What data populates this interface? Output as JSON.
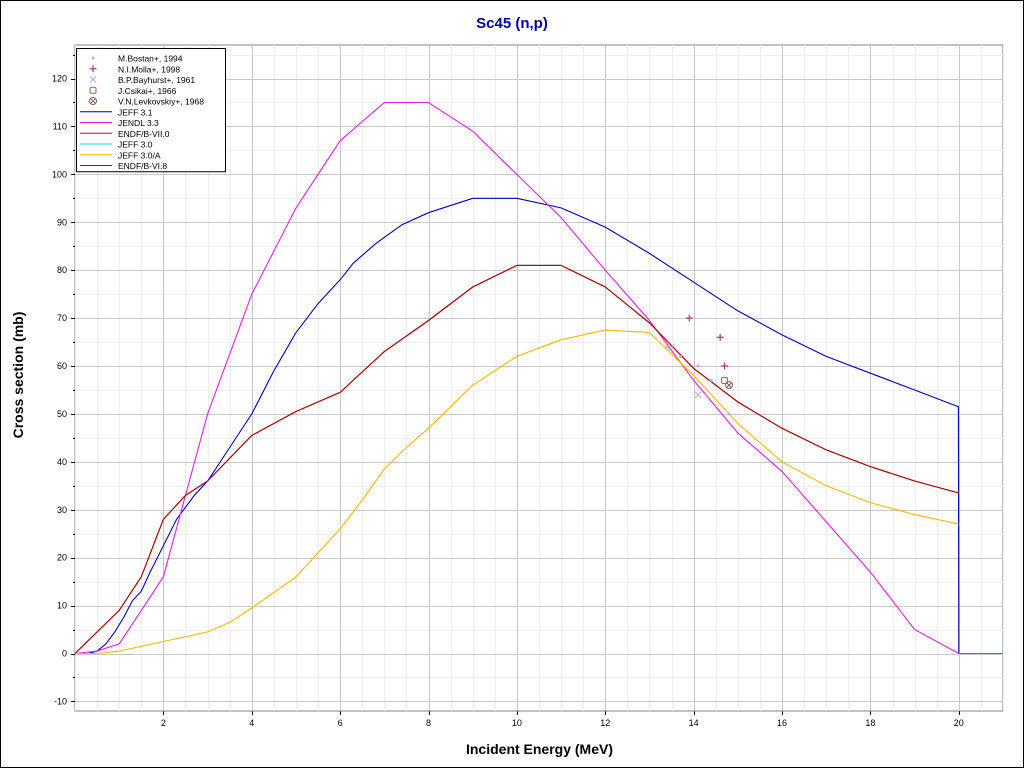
{
  "chart_data": {
    "type": "line",
    "title": "Sc45 (n,p)",
    "xlabel": "Incident Energy (MeV)",
    "ylabel": "Cross section (mb)",
    "xlim": [
      0,
      21
    ],
    "ylim": [
      -12,
      127
    ],
    "x_ticks": [
      2,
      4,
      6,
      8,
      10,
      12,
      14,
      16,
      18,
      20
    ],
    "y_ticks": [
      -10,
      0,
      10,
      20,
      30,
      40,
      50,
      60,
      70,
      80,
      90,
      100,
      110,
      120
    ],
    "grid": true,
    "legend_position": "top-left",
    "series": [
      {
        "name": "JEFF 3.1",
        "color": "#0000c0",
        "points": [
          [
            0,
            0
          ],
          [
            0.3,
            0
          ],
          [
            0.5,
            0.5
          ],
          [
            0.7,
            2
          ],
          [
            0.9,
            4.5
          ],
          [
            1.1,
            7.5
          ],
          [
            1.3,
            11
          ],
          [
            1.5,
            13
          ],
          [
            1.7,
            17
          ],
          [
            2,
            22.5
          ],
          [
            2.3,
            28
          ],
          [
            2.7,
            33
          ],
          [
            3,
            36
          ],
          [
            3.5,
            43
          ],
          [
            4,
            50
          ],
          [
            4.5,
            59
          ],
          [
            5,
            67
          ],
          [
            5.5,
            73
          ],
          [
            6,
            78
          ],
          [
            6.3,
            81.5
          ],
          [
            6.8,
            85.5
          ],
          [
            7.4,
            89.5
          ],
          [
            8,
            92
          ],
          [
            9,
            95
          ],
          [
            10,
            95
          ],
          [
            11,
            93
          ],
          [
            12,
            89
          ],
          [
            13,
            83.5
          ],
          [
            14,
            77.5
          ],
          [
            15,
            71.5
          ],
          [
            16,
            66.5
          ],
          [
            17,
            62
          ],
          [
            18,
            58.5
          ],
          [
            19,
            55
          ],
          [
            19.99,
            51.5
          ],
          [
            20,
            0
          ],
          [
            21,
            0
          ]
        ]
      },
      {
        "name": "JENDL 3.3",
        "color": "#e020e0",
        "points": [
          [
            0,
            0
          ],
          [
            0.5,
            0.5
          ],
          [
            1,
            2
          ],
          [
            1.5,
            9
          ],
          [
            2,
            16
          ],
          [
            3,
            50
          ],
          [
            4,
            75
          ],
          [
            5,
            93
          ],
          [
            6,
            107
          ],
          [
            7,
            115
          ],
          [
            8,
            115
          ],
          [
            9,
            109
          ],
          [
            10,
            100
          ],
          [
            11,
            91
          ],
          [
            12,
            80
          ],
          [
            13,
            69.5
          ],
          [
            14,
            57
          ],
          [
            15,
            46
          ],
          [
            16,
            38
          ],
          [
            17,
            27.5
          ],
          [
            18,
            17
          ],
          [
            19,
            5
          ],
          [
            20,
            0
          ],
          [
            21,
            0
          ]
        ]
      },
      {
        "name": "ENDF/B-VII.0",
        "color": "#e00000",
        "points": [
          [
            0,
            0
          ],
          [
            1,
            9
          ],
          [
            1.5,
            16
          ],
          [
            2,
            28
          ],
          [
            2.5,
            33
          ],
          [
            3,
            36
          ],
          [
            4,
            45.5
          ],
          [
            5,
            50.5
          ],
          [
            6,
            54.5
          ],
          [
            7,
            63
          ],
          [
            8,
            69.5
          ],
          [
            9,
            76.5
          ],
          [
            10,
            81
          ],
          [
            11,
            81
          ],
          [
            12,
            76.5
          ],
          [
            13,
            69
          ],
          [
            14,
            59.5
          ],
          [
            15,
            52.5
          ],
          [
            16,
            47
          ],
          [
            17,
            42.5
          ],
          [
            18,
            39
          ],
          [
            19,
            36
          ],
          [
            20,
            33.5
          ]
        ]
      },
      {
        "name": "JEFF 3.0",
        "color": "#00e0e0",
        "points": [
          [
            0,
            0
          ],
          [
            1,
            9
          ],
          [
            1.5,
            16
          ],
          [
            2,
            28
          ],
          [
            2.5,
            33
          ],
          [
            3,
            36
          ],
          [
            4,
            45.5
          ],
          [
            5,
            50.5
          ],
          [
            6,
            54.5
          ],
          [
            7,
            63
          ],
          [
            8,
            69.5
          ],
          [
            9,
            76.5
          ],
          [
            10,
            81
          ],
          [
            11,
            81
          ],
          [
            12,
            76.5
          ],
          [
            13,
            69
          ],
          [
            14,
            59.5
          ],
          [
            15,
            52.5
          ],
          [
            16,
            47
          ],
          [
            17,
            42.5
          ],
          [
            18,
            39
          ],
          [
            19,
            36
          ],
          [
            20,
            33.5
          ]
        ]
      },
      {
        "name": "JEFF 3.0/A",
        "color": "#ffb800",
        "points": [
          [
            0,
            0
          ],
          [
            0.5,
            0
          ],
          [
            1,
            0.5
          ],
          [
            2,
            2.5
          ],
          [
            3,
            4.5
          ],
          [
            3.5,
            6.5
          ],
          [
            4,
            9.5
          ],
          [
            5,
            16
          ],
          [
            6,
            26
          ],
          [
            6.5,
            32
          ],
          [
            7,
            38.5
          ],
          [
            7.5,
            43
          ],
          [
            8,
            47
          ],
          [
            9,
            56
          ],
          [
            10,
            62
          ],
          [
            11,
            65.5
          ],
          [
            12,
            67.5
          ],
          [
            13,
            67
          ],
          [
            14,
            58
          ],
          [
            15,
            48
          ],
          [
            16,
            40
          ],
          [
            17,
            35
          ],
          [
            18,
            31.5
          ],
          [
            19,
            29
          ],
          [
            20,
            27
          ]
        ]
      },
      {
        "name": "ENDF/B-VI.8",
        "color": "#c00000",
        "points": [
          [
            0,
            0
          ],
          [
            1,
            9
          ],
          [
            1.5,
            16
          ],
          [
            2,
            28
          ],
          [
            2.5,
            33
          ],
          [
            3,
            36
          ],
          [
            4,
            45.5
          ],
          [
            5,
            50.5
          ],
          [
            6,
            54.5
          ],
          [
            7,
            63
          ],
          [
            8,
            69.5
          ],
          [
            9,
            76.5
          ],
          [
            10,
            81
          ],
          [
            11,
            81
          ],
          [
            12,
            76.5
          ],
          [
            13,
            69
          ],
          [
            14,
            59.5
          ],
          [
            15,
            52.5
          ],
          [
            16,
            47
          ],
          [
            17,
            42.5
          ],
          [
            18,
            39
          ],
          [
            19,
            36
          ],
          [
            20,
            33.5
          ]
        ]
      }
    ],
    "experimental": [
      {
        "name": "M.Bostan+, 1994",
        "color": "#b0b0ff",
        "marker": "dot",
        "points": [
          [
            13.4,
            64
          ],
          [
            13.7,
            62
          ],
          [
            14.1,
            60
          ],
          [
            14.4,
            57
          ],
          [
            14.8,
            50
          ]
        ]
      },
      {
        "name": "N.I.Molla+, 1998",
        "color": "#a04080",
        "marker": "plus",
        "points": [
          [
            13.9,
            70
          ],
          [
            14.6,
            66
          ],
          [
            14.7,
            60
          ]
        ]
      },
      {
        "name": "B.P.Bayhurst+, 1961",
        "color": "#b0b0d0",
        "marker": "x",
        "points": [
          [
            13.5,
            64
          ],
          [
            14.1,
            54
          ]
        ]
      },
      {
        "name": "J.Csikai+, 1966",
        "color": "#c06040",
        "marker": "square",
        "points": [
          [
            14.7,
            57
          ]
        ]
      },
      {
        "name": "V.N.Levkovskiy+, 1968",
        "color": "#806060",
        "marker": "circled-x",
        "points": [
          [
            14.8,
            56
          ]
        ]
      }
    ]
  }
}
